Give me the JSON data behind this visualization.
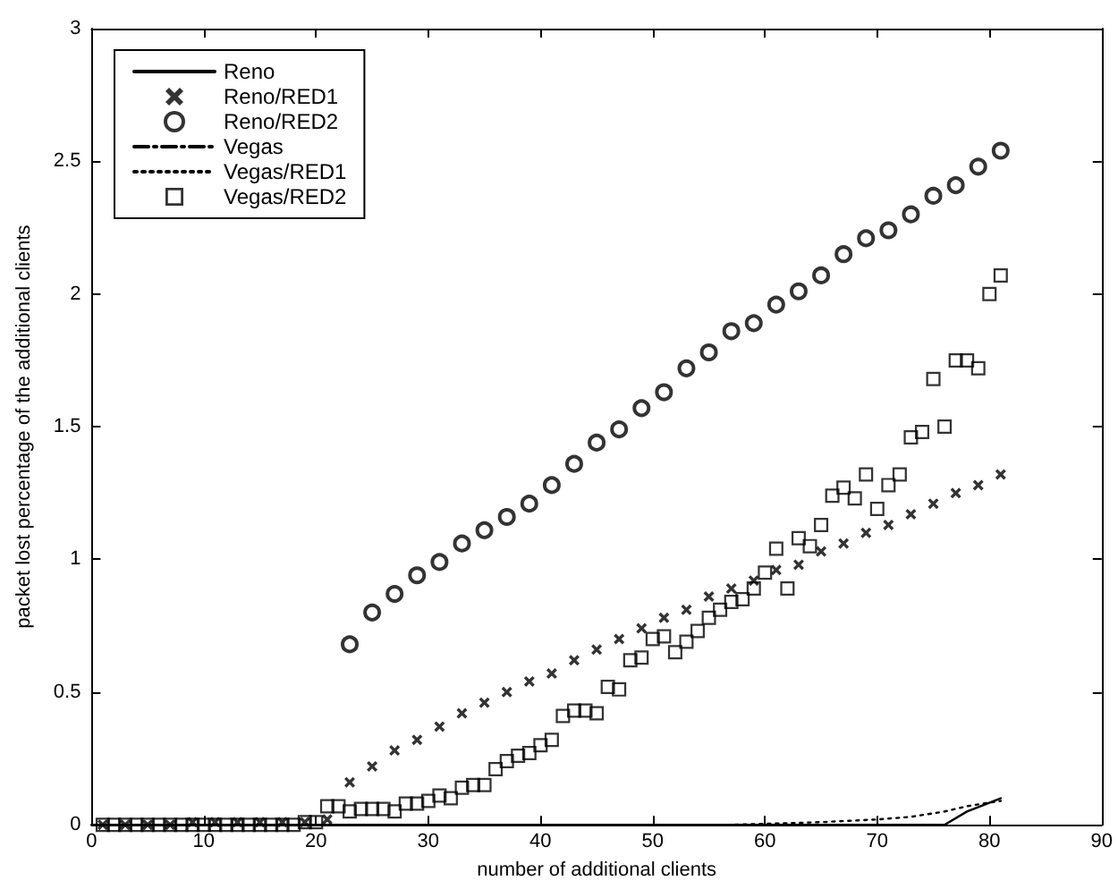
{
  "chart_data": {
    "type": "scatter",
    "xlabel": "number of additional clients",
    "ylabel": "packet lost percentage of the additional clients",
    "xlim": [
      0,
      90
    ],
    "xticks": [
      0,
      10,
      20,
      30,
      40,
      50,
      60,
      70,
      80,
      90
    ],
    "ylim": [
      0,
      3
    ],
    "yticks": [
      0,
      0.5,
      1,
      1.5,
      2,
      2.5,
      3
    ],
    "grid": false,
    "legend": "top left",
    "series": [
      {
        "name": "Reno",
        "type": "line",
        "line_style": "solid",
        "marker": "none",
        "color": "#000000",
        "x": [
          0,
          20,
          40,
          60,
          76,
          78,
          81
        ],
        "values": [
          0,
          0,
          0,
          0,
          0,
          0.05,
          0.1
        ]
      },
      {
        "name": "Reno/RED1",
        "marker": "cross",
        "color": "#000000",
        "x": [
          1,
          3,
          5,
          7,
          9,
          11,
          13,
          15,
          17,
          19,
          21,
          23,
          25,
          27,
          29,
          31,
          33,
          35,
          37,
          39,
          41,
          43,
          45,
          47,
          49,
          51,
          53,
          55,
          57,
          59,
          61,
          63,
          65,
          67,
          69,
          71,
          73,
          75,
          77,
          79,
          81
        ],
        "values": [
          0,
          0,
          0,
          0,
          0.01,
          0.01,
          0.01,
          0.01,
          0.01,
          0.01,
          0.02,
          0.16,
          0.22,
          0.28,
          0.32,
          0.37,
          0.42,
          0.46,
          0.5,
          0.54,
          0.57,
          0.62,
          0.66,
          0.7,
          0.74,
          0.78,
          0.81,
          0.86,
          0.89,
          0.92,
          0.96,
          0.98,
          1.03,
          1.06,
          1.1,
          1.13,
          1.17,
          1.21,
          1.25,
          1.28,
          1.32
        ]
      },
      {
        "name": "Reno/RED2",
        "marker": "circle",
        "color": "#000000",
        "x": [
          23,
          25,
          27,
          29,
          31,
          33,
          35,
          37,
          39,
          41,
          43,
          45,
          47,
          49,
          51,
          53,
          55,
          57,
          59,
          61,
          63,
          65,
          67,
          69,
          71,
          73,
          75,
          77,
          79,
          81
        ],
        "values": [
          0.68,
          0.8,
          0.87,
          0.94,
          0.99,
          1.06,
          1.11,
          1.16,
          1.21,
          1.28,
          1.36,
          1.44,
          1.49,
          1.57,
          1.63,
          1.72,
          1.78,
          1.86,
          1.89,
          1.96,
          2.01,
          2.07,
          2.15,
          2.21,
          2.24,
          2.3,
          2.37,
          2.41,
          2.48,
          2.54
        ]
      },
      {
        "name": "Vegas",
        "type": "line",
        "line_style": "dashdot",
        "marker": "none",
        "color": "#000000"
      },
      {
        "name": "Vegas/RED1",
        "type": "line",
        "line_style": "dotted",
        "marker": "none",
        "color": "#000000",
        "x": [
          0,
          57,
          65,
          70,
          73,
          76,
          78,
          81
        ],
        "values": [
          0,
          0,
          0.01,
          0.02,
          0.03,
          0.05,
          0.07,
          0.09
        ]
      },
      {
        "name": "Vegas/RED2",
        "marker": "square",
        "color": "#000000",
        "x": [
          1,
          2,
          3,
          4,
          5,
          6,
          7,
          8,
          9,
          10,
          11,
          12,
          13,
          14,
          15,
          16,
          17,
          18,
          19,
          20,
          21,
          22,
          23,
          24,
          25,
          26,
          27,
          28,
          29,
          30,
          31,
          32,
          33,
          34,
          35,
          36,
          37,
          38,
          39,
          40,
          41,
          42,
          43,
          44,
          45,
          46,
          47,
          48,
          49,
          50,
          51,
          52,
          53,
          54,
          55,
          56,
          57,
          58,
          59,
          60,
          61,
          62,
          63,
          64,
          65,
          66,
          67,
          68,
          69,
          70,
          71,
          72,
          73,
          74,
          75,
          76,
          77,
          78,
          79,
          80,
          81
        ],
        "values": [
          0,
          0,
          0,
          0,
          0,
          0,
          0,
          0,
          0,
          0,
          0,
          0,
          0,
          0,
          0,
          0,
          0,
          0,
          0.01,
          0.01,
          0.07,
          0.07,
          0.05,
          0.06,
          0.06,
          0.06,
          0.05,
          0.08,
          0.08,
          0.09,
          0.11,
          0.1,
          0.14,
          0.15,
          0.15,
          0.21,
          0.24,
          0.26,
          0.27,
          0.3,
          0.32,
          0.41,
          0.43,
          0.43,
          0.42,
          0.52,
          0.51,
          0.62,
          0.63,
          0.7,
          0.71,
          0.65,
          0.69,
          0.73,
          0.78,
          0.81,
          0.84,
          0.85,
          0.89,
          0.95,
          1.04,
          0.89,
          1.08,
          1.05,
          1.13,
          1.24,
          1.27,
          1.23,
          1.32,
          1.19,
          1.28,
          1.32,
          1.46,
          1.48,
          1.68,
          1.5,
          1.75,
          1.75,
          1.72,
          2,
          2.07
        ]
      }
    ]
  }
}
